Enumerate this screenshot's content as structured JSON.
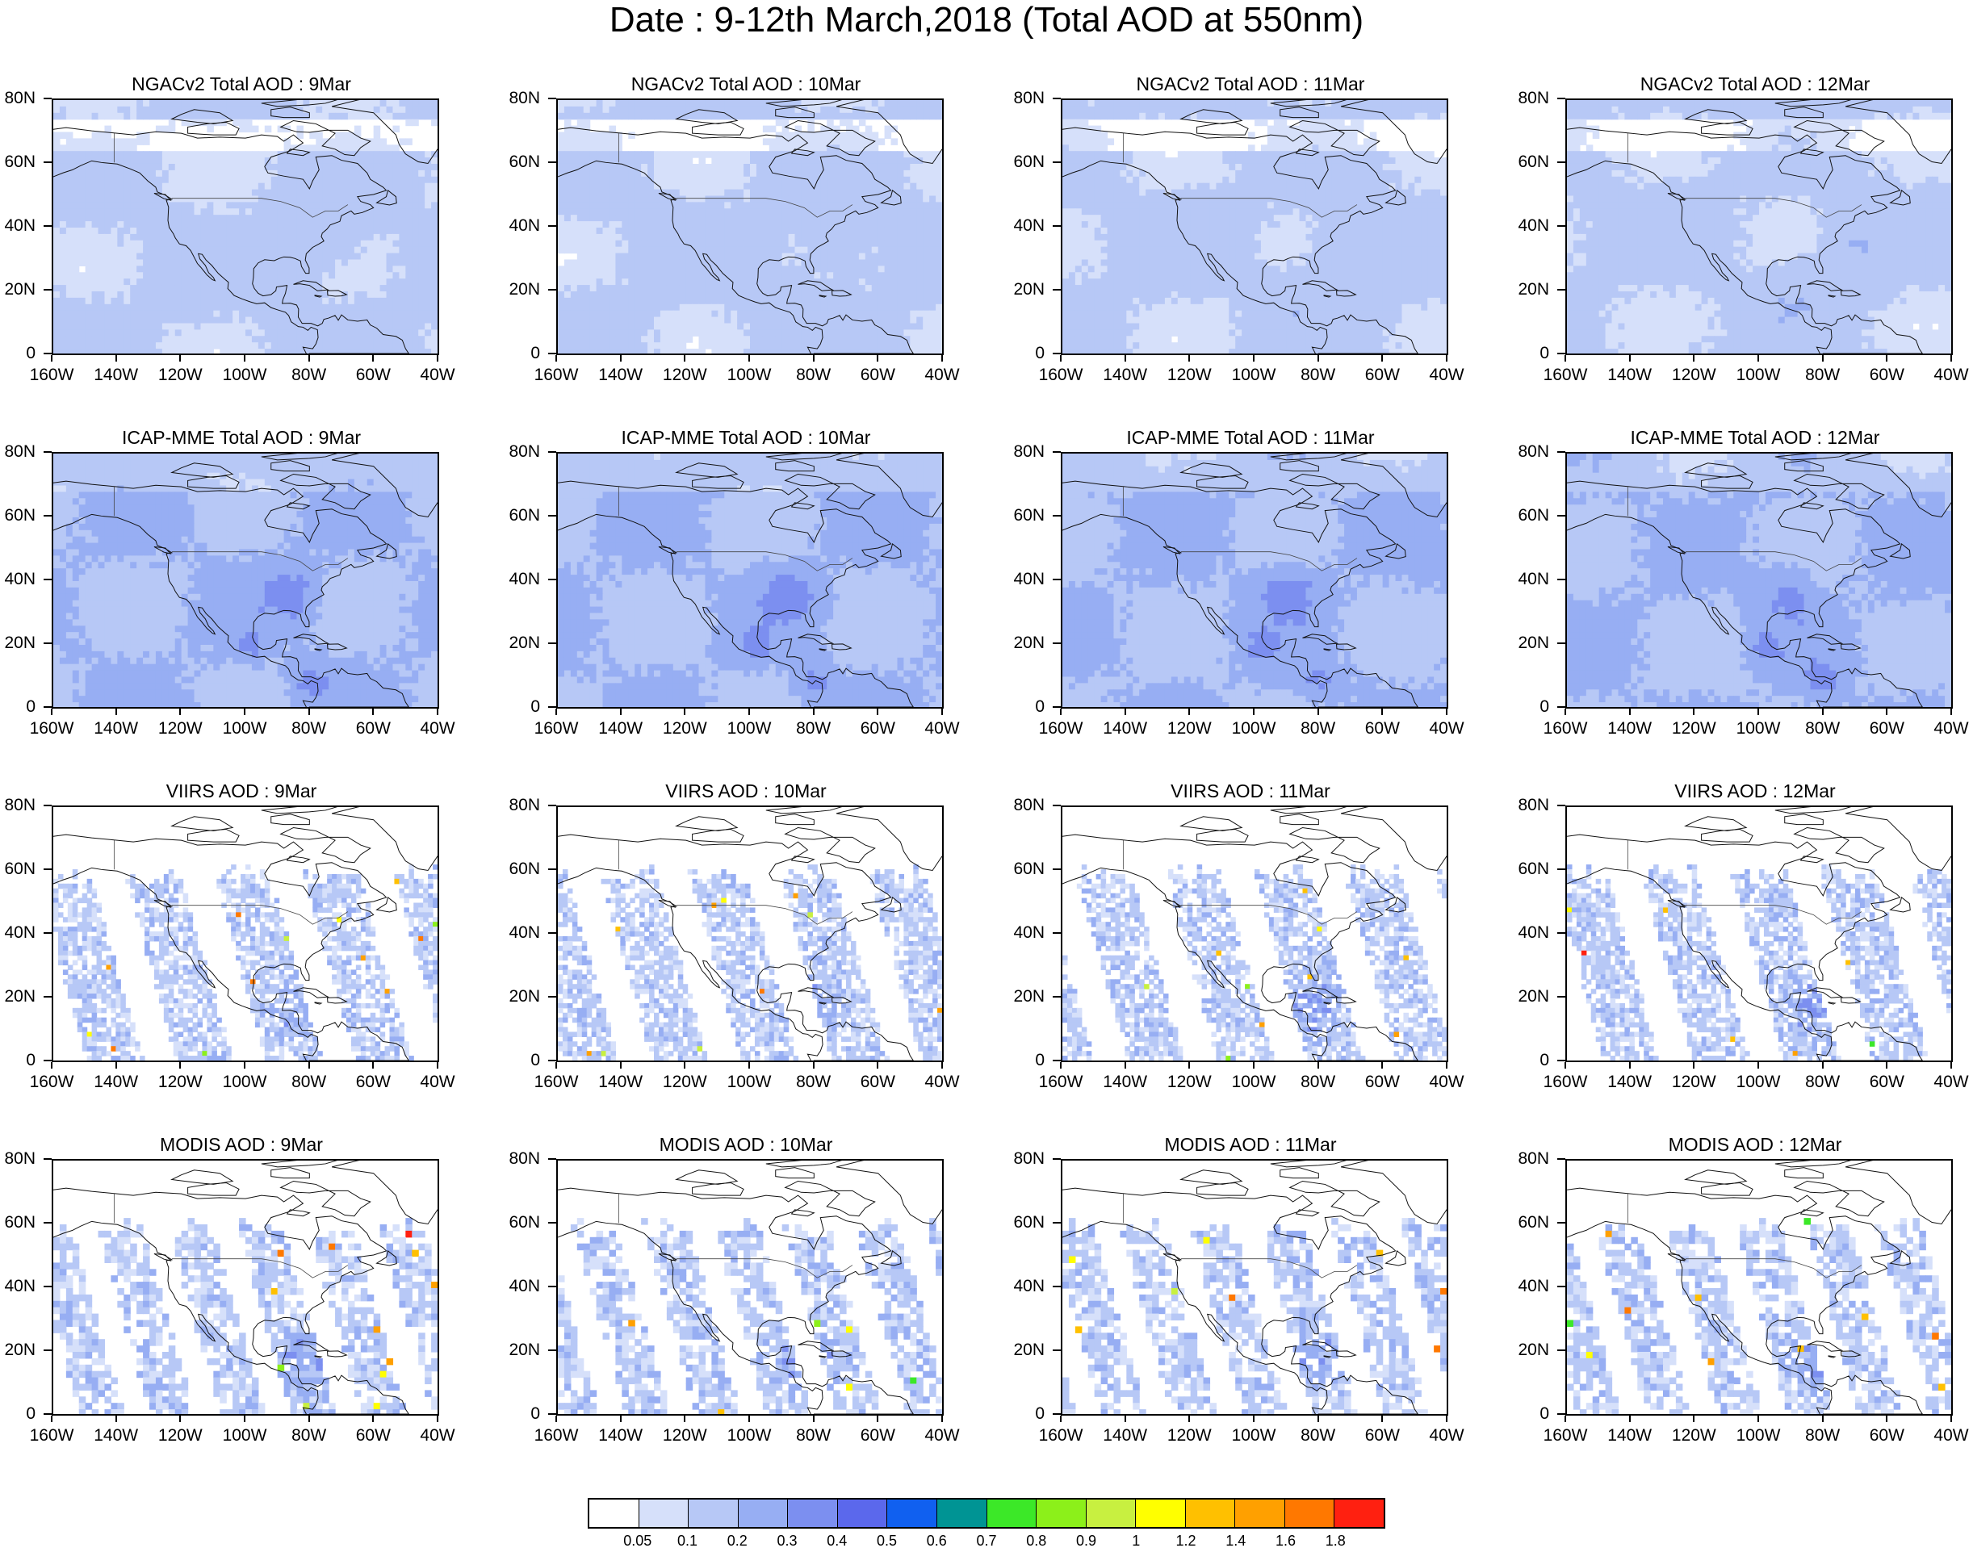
{
  "figure_title": "Date : 9-12th March,2018 (Total AOD at 550nm)",
  "lat_labels": [
    "80N",
    "60N",
    "40N",
    "20N",
    "0"
  ],
  "lon_labels": [
    "160W",
    "140W",
    "120W",
    "100W",
    "80W",
    "60W",
    "40W"
  ],
  "rows": [
    {
      "source": "NGACv2",
      "titles": [
        "NGACv2 Total AOD : 9Mar",
        "NGACv2 Total AOD : 10Mar",
        "NGACv2 Total AOD : 11Mar",
        "NGACv2 Total AOD : 12Mar"
      ]
    },
    {
      "source": "ICAP-MME",
      "titles": [
        "ICAP-MME Total AOD : 9Mar",
        "ICAP-MME Total AOD : 10Mar",
        "ICAP-MME Total AOD : 11Mar",
        "ICAP-MME Total AOD : 12Mar"
      ]
    },
    {
      "source": "VIIRS",
      "titles": [
        "VIIRS AOD : 9Mar",
        "VIIRS AOD : 10Mar",
        "VIIRS AOD : 11Mar",
        "VIIRS AOD : 12Mar"
      ]
    },
    {
      "source": "MODIS",
      "titles": [
        "MODIS AOD : 9Mar",
        "MODIS AOD : 10Mar",
        "MODIS AOD : 11Mar",
        "MODIS AOD : 12Mar"
      ]
    }
  ],
  "colorbar": {
    "labels": [
      "0.05",
      "0.1",
      "0.2",
      "0.3",
      "0.4",
      "0.5",
      "0.6",
      "0.7",
      "0.8",
      "0.9",
      "1",
      "1.2",
      "1.4",
      "1.6",
      "1.8"
    ],
    "colors": [
      "#ffffff",
      "#d6e0fa",
      "#b7c8f6",
      "#97aef3",
      "#7c8ff0",
      "#5b68ec",
      "#1060f0",
      "#009494",
      "#3ce828",
      "#8cf01a",
      "#c8f040",
      "#ffff00",
      "#ffc000",
      "#ffa000",
      "#ff7800",
      "#ff2010"
    ]
  }
}
